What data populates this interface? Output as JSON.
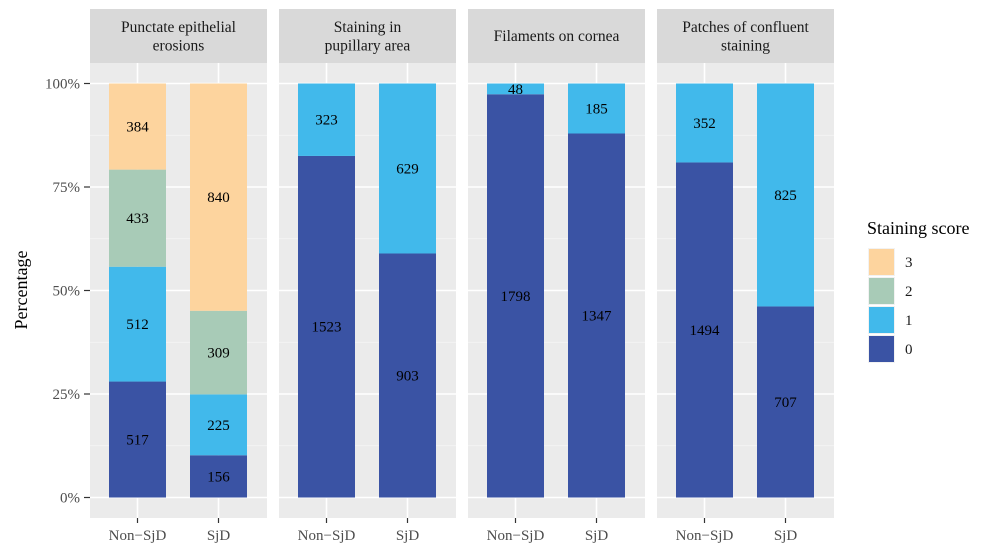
{
  "chart_data": {
    "type": "bar",
    "stacked": "percent",
    "ylabel": "Percentage",
    "yticks": [
      "0%",
      "25%",
      "50%",
      "75%",
      "100%"
    ],
    "ytick_values": [
      0,
      25,
      50,
      75,
      100
    ],
    "ylim": [
      0,
      100
    ],
    "categories": [
      "Non−SjD",
      "SjD"
    ],
    "grid": true,
    "legend": {
      "title": "Staining score",
      "placement": "right",
      "entries": [
        {
          "label": "3",
          "color": "#FDD49E"
        },
        {
          "label": "2",
          "color": "#A8CBB7"
        },
        {
          "label": "1",
          "color": "#41B9EB"
        },
        {
          "label": "0",
          "color": "#3A53A4"
        }
      ]
    },
    "panels": [
      {
        "title_lines": [
          "Punctate epithelial",
          "erosions"
        ],
        "bars": [
          {
            "category": "Non−SjD",
            "counts": {
              "0": 517,
              "1": 512,
              "2": 433,
              "3": 384
            }
          },
          {
            "category": "SjD",
            "counts": {
              "0": 156,
              "1": 225,
              "2": 309,
              "3": 840
            }
          }
        ]
      },
      {
        "title_lines": [
          "Staining in",
          "pupillary area"
        ],
        "bars": [
          {
            "category": "Non−SjD",
            "counts": {
              "0": 1523,
              "1": 323
            }
          },
          {
            "category": "SjD",
            "counts": {
              "0": 903,
              "1": 629
            }
          }
        ]
      },
      {
        "title_lines": [
          "Filaments on cornea"
        ],
        "bars": [
          {
            "category": "Non−SjD",
            "counts": {
              "0": 1798,
              "1": 48
            }
          },
          {
            "category": "SjD",
            "counts": {
              "0": 1347,
              "1": 185
            }
          }
        ]
      },
      {
        "title_lines": [
          "Patches of confluent",
          "staining"
        ],
        "bars": [
          {
            "category": "Non−SjD",
            "counts": {
              "0": 1494,
              "1": 352
            }
          },
          {
            "category": "SjD",
            "counts": {
              "0": 707,
              "1": 825
            }
          }
        ]
      }
    ]
  }
}
